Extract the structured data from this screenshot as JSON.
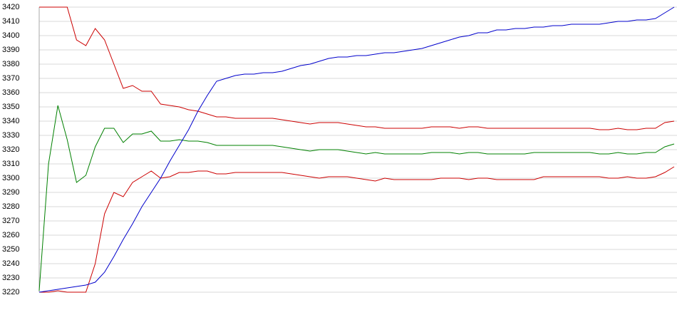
{
  "chart_data": {
    "type": "line",
    "categories": [
      null,
      null,
      null,
      null,
      null,
      null,
      null,
      null,
      null,
      null,
      null,
      null,
      null,
      null,
      null,
      null,
      null,
      null,
      null,
      null,
      null,
      null,
      null,
      null,
      null,
      null,
      null,
      null,
      null,
      null,
      null,
      null,
      null,
      null,
      null,
      null,
      null,
      null,
      null,
      null,
      null,
      null,
      null,
      null,
      null,
      null,
      null,
      null,
      null,
      null,
      null,
      null,
      null,
      null,
      null,
      null,
      null,
      null,
      null,
      null,
      null,
      null,
      null,
      null,
      null,
      null,
      null,
      null,
      null
    ],
    "ylim": [
      3220,
      3420
    ],
    "yticks": [
      3220,
      3230,
      3240,
      3250,
      3260,
      3270,
      3280,
      3290,
      3300,
      3310,
      3320,
      3330,
      3340,
      3350,
      3360,
      3370,
      3380,
      3390,
      3400,
      3410,
      3420
    ],
    "grid": true,
    "series": [
      {
        "color": "#cc0000",
        "values": [
          3420,
          3420,
          3420,
          3420,
          3397,
          3393,
          3405,
          3397,
          3380,
          3363,
          3365,
          3361,
          3361,
          3352,
          3351,
          3350,
          3348,
          3347,
          3345,
          3343,
          3343,
          3342,
          3342,
          3342,
          3342,
          3342,
          3341,
          3340,
          3339,
          3338,
          3339,
          3339,
          3339,
          3338,
          3337,
          3336,
          3336,
          3335,
          3335,
          3335,
          3335,
          3335,
          3336,
          3336,
          3336,
          3335,
          3336,
          3336,
          3335,
          3335,
          3335,
          3335,
          3335,
          3335,
          3335,
          3335,
          3335,
          3335,
          3335,
          3335,
          3334,
          3334,
          3335,
          3334,
          3334,
          3335,
          3335,
          3339,
          3340
        ]
      },
      {
        "color": "#008000",
        "values": [
          3221,
          3310,
          3351,
          3327,
          3297,
          3302,
          3322,
          3335,
          3335,
          3325,
          3331,
          3331,
          3333,
          3326,
          3326,
          3327,
          3326,
          3326,
          3325,
          3323,
          3323,
          3323,
          3323,
          3323,
          3323,
          3323,
          3322,
          3321,
          3320,
          3319,
          3320,
          3320,
          3320,
          3319,
          3318,
          3317,
          3318,
          3317,
          3317,
          3317,
          3317,
          3317,
          3318,
          3318,
          3318,
          3317,
          3318,
          3318,
          3317,
          3317,
          3317,
          3317,
          3317,
          3318,
          3318,
          3318,
          3318,
          3318,
          3318,
          3318,
          3317,
          3317,
          3318,
          3317,
          3317,
          3318,
          3318,
          3322,
          3324
        ]
      },
      {
        "color": "#cc0000",
        "values": [
          3220,
          3220,
          3221,
          3220,
          3220,
          3220,
          3240,
          3275,
          3290,
          3287,
          3297,
          3301,
          3305,
          3300,
          3301,
          3304,
          3304,
          3305,
          3305,
          3303,
          3303,
          3304,
          3304,
          3304,
          3304,
          3304,
          3304,
          3303,
          3302,
          3301,
          3300,
          3301,
          3301,
          3301,
          3300,
          3299,
          3298,
          3300,
          3299,
          3299,
          3299,
          3299,
          3299,
          3300,
          3300,
          3300,
          3299,
          3300,
          3300,
          3299,
          3299,
          3299,
          3299,
          3299,
          3301,
          3301,
          3301,
          3301,
          3301,
          3301,
          3301,
          3300,
          3300,
          3301,
          3300,
          3300,
          3301,
          3304,
          3308
        ]
      },
      {
        "color": "#0000cc",
        "values": [
          3220,
          3221,
          3222,
          3223,
          3224,
          3225,
          3227,
          3234,
          3245,
          3257,
          3268,
          3280,
          3290,
          3300,
          3312,
          3323,
          3334,
          3347,
          3358,
          3368,
          3370,
          3372,
          3373,
          3373,
          3374,
          3374,
          3375,
          3377,
          3379,
          3380,
          3382,
          3384,
          3385,
          3385,
          3386,
          3386,
          3387,
          3388,
          3388,
          3389,
          3390,
          3391,
          3393,
          3395,
          3397,
          3399,
          3400,
          3402,
          3402,
          3404,
          3404,
          3405,
          3405,
          3406,
          3406,
          3407,
          3407,
          3408,
          3408,
          3408,
          3408,
          3409,
          3410,
          3410,
          3411,
          3411,
          3412,
          3416,
          3420
        ]
      }
    ]
  }
}
